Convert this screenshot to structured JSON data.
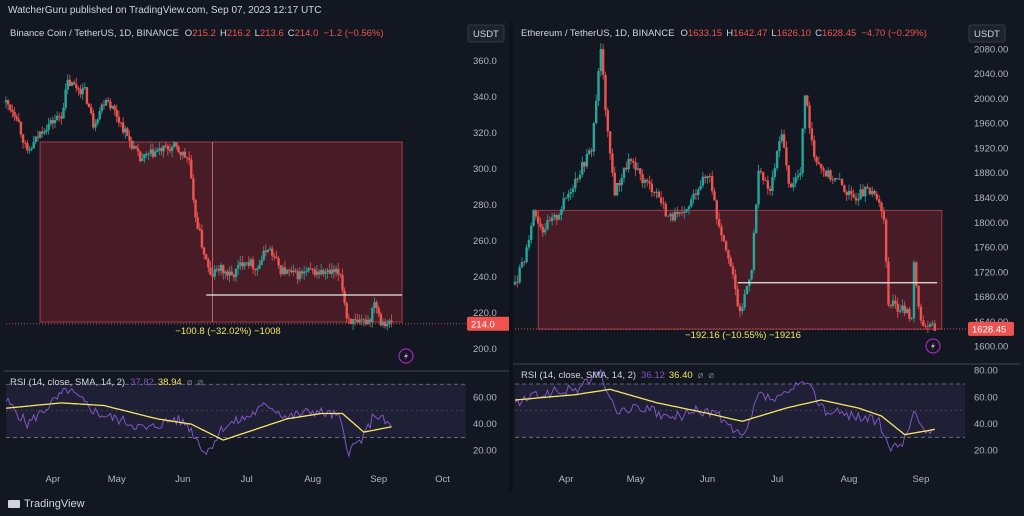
{
  "attribution": "WatcherGuru published on TradingView.com, Sep 07, 2023 12:17 UTC",
  "footer_logo": "TradingView",
  "colors": {
    "up": "#26a69a",
    "down": "#ef5350",
    "zone": "#5a1f2a",
    "rsi": "#7e57c2",
    "sma": "#f5e663",
    "bg": "#131722"
  },
  "chart_data": [
    {
      "type": "candlestick",
      "symbol": "Binance Coin / TetherUS, 1D, BINANCE",
      "ohlc_label": {
        "o": "O",
        "o_val": "215.2",
        "h": "H",
        "h_val": "216.2",
        "l": "L",
        "l_val": "213.6",
        "c": "C",
        "c_val": "214.0",
        "chg": "−1.2 (−0.56%)"
      },
      "currency": "USDT",
      "last_price": "214.0",
      "ylim": [
        190,
        375
      ],
      "y_ticks": [
        "360.0",
        "340.0",
        "320.0",
        "300.0",
        "280.0",
        "260.0",
        "240.0",
        "220.0",
        "200.0"
      ],
      "x_labels": [
        "Apr",
        "May",
        "Jun",
        "Jul",
        "Aug",
        "Sep",
        "Oct"
      ],
      "x_range": [
        "2023-03-10",
        "2023-10-12"
      ],
      "x_label_dates": [
        "2023-04-01",
        "2023-05-01",
        "2023-06-01",
        "2023-07-01",
        "2023-08-01",
        "2023-09-01",
        "2023-10-01"
      ],
      "anchors": [
        [
          "2023-03-10",
          337
        ],
        [
          "2023-03-15",
          330
        ],
        [
          "2023-03-20",
          308
        ],
        [
          "2023-03-27",
          322
        ],
        [
          "2023-04-05",
          330
        ],
        [
          "2023-04-08",
          348
        ],
        [
          "2023-04-16",
          343
        ],
        [
          "2023-04-20",
          325
        ],
        [
          "2023-04-26",
          340
        ],
        [
          "2023-05-01",
          330
        ],
        [
          "2023-05-06",
          318
        ],
        [
          "2023-05-12",
          305
        ],
        [
          "2023-05-20",
          310
        ],
        [
          "2023-05-28",
          312
        ],
        [
          "2023-06-04",
          305
        ],
        [
          "2023-06-06",
          280
        ],
        [
          "2023-06-10",
          258
        ],
        [
          "2023-06-14",
          240
        ],
        [
          "2023-06-18",
          245
        ],
        [
          "2023-06-24",
          240
        ],
        [
          "2023-06-30",
          250
        ],
        [
          "2023-07-06",
          245
        ],
        [
          "2023-07-11",
          257
        ],
        [
          "2023-07-17",
          244
        ],
        [
          "2023-07-24",
          241
        ],
        [
          "2023-07-31",
          243
        ],
        [
          "2023-08-07",
          242
        ],
        [
          "2023-08-14",
          242
        ],
        [
          "2023-08-17",
          218
        ],
        [
          "2023-08-22",
          213
        ],
        [
          "2023-08-28",
          217
        ],
        [
          "2023-08-30",
          228
        ],
        [
          "2023-09-02",
          216
        ],
        [
          "2023-09-07",
          214
        ]
      ],
      "zone": {
        "y_top": 315,
        "y_bottom": 215,
        "x_start": "2023-03-26",
        "x_end": "2023-09-12"
      },
      "level_line": {
        "y": 230,
        "x_start": "2023-06-12",
        "x_end": "2023-09-12"
      },
      "marker_date": "2023-06-15",
      "range_label": "−100.8 (−32.02%) −1008",
      "rsi": {
        "label": "RSI (14, close, SMA, 14, 2)",
        "v1": "37.82",
        "v2": "38.94",
        "y_ticks": [
          "60.00",
          "40.00",
          "20.00"
        ],
        "ylim": [
          10,
          80
        ],
        "bands": [
          70,
          30
        ],
        "anchors": [
          [
            "2023-03-10",
            58
          ],
          [
            "2023-03-20",
            40
          ],
          [
            "2023-04-08",
            66
          ],
          [
            "2023-04-22",
            48
          ],
          [
            "2023-05-05",
            42
          ],
          [
            "2023-05-15",
            36
          ],
          [
            "2023-05-28",
            44
          ],
          [
            "2023-06-03",
            40
          ],
          [
            "2023-06-12",
            18
          ],
          [
            "2023-06-20",
            38
          ],
          [
            "2023-07-01",
            45
          ],
          [
            "2023-07-11",
            55
          ],
          [
            "2023-07-20",
            45
          ],
          [
            "2023-08-01",
            50
          ],
          [
            "2023-08-13",
            46
          ],
          [
            "2023-08-18",
            20
          ],
          [
            "2023-08-25",
            30
          ],
          [
            "2023-08-30",
            48
          ],
          [
            "2023-09-07",
            38
          ]
        ],
        "sma_anchors": [
          [
            "2023-03-10",
            52
          ],
          [
            "2023-04-05",
            56
          ],
          [
            "2023-04-25",
            54
          ],
          [
            "2023-05-20",
            44
          ],
          [
            "2023-06-05",
            40
          ],
          [
            "2023-06-20",
            28
          ],
          [
            "2023-07-05",
            36
          ],
          [
            "2023-07-20",
            44
          ],
          [
            "2023-08-05",
            48
          ],
          [
            "2023-08-15",
            48
          ],
          [
            "2023-08-25",
            34
          ],
          [
            "2023-09-07",
            38
          ]
        ]
      }
    },
    {
      "type": "candlestick",
      "symbol": "Ethereum / TetherUS, 1D, BINANCE",
      "ohlc_label": {
        "o": "O",
        "o_val": "1633.15",
        "h": "H",
        "h_val": "1642.47",
        "l": "L",
        "l_val": "1626.10",
        "c": "C",
        "c_val": "1628.45",
        "chg": "−4.70 (−0.29%)"
      },
      "currency": "USDT",
      "last_price": "1628.45",
      "ylim": [
        1575,
        2105
      ],
      "y_ticks": [
        "2080.00",
        "2040.00",
        "2000.00",
        "1960.00",
        "1920.00",
        "1880.00",
        "1840.00",
        "1800.00",
        "1760.00",
        "1720.00",
        "1680.00",
        "1640.00",
        "1600.00"
      ],
      "x_labels": [
        "Apr",
        "May",
        "Jun",
        "Jul",
        "Aug",
        "Sep"
      ],
      "x_range": [
        "2023-03-10",
        "2023-09-20"
      ],
      "x_label_dates": [
        "2023-04-01",
        "2023-05-01",
        "2023-06-01",
        "2023-07-01",
        "2023-08-01",
        "2023-09-01"
      ],
      "anchors": [
        [
          "2023-03-10",
          1700
        ],
        [
          "2023-03-14",
          1740
        ],
        [
          "2023-03-18",
          1820
        ],
        [
          "2023-03-22",
          1790
        ],
        [
          "2023-03-28",
          1810
        ],
        [
          "2023-04-05",
          1870
        ],
        [
          "2023-04-12",
          1920
        ],
        [
          "2023-04-16",
          2080
        ],
        [
          "2023-04-19",
          1940
        ],
        [
          "2023-04-22",
          1850
        ],
        [
          "2023-04-28",
          1900
        ],
        [
          "2023-05-04",
          1870
        ],
        [
          "2023-05-10",
          1850
        ],
        [
          "2023-05-15",
          1810
        ],
        [
          "2023-05-22",
          1810
        ],
        [
          "2023-05-28",
          1860
        ],
        [
          "2023-06-02",
          1880
        ],
        [
          "2023-06-05",
          1810
        ],
        [
          "2023-06-10",
          1750
        ],
        [
          "2023-06-15",
          1650
        ],
        [
          "2023-06-20",
          1730
        ],
        [
          "2023-06-23",
          1880
        ],
        [
          "2023-06-28",
          1850
        ],
        [
          "2023-07-03",
          1950
        ],
        [
          "2023-07-06",
          1860
        ],
        [
          "2023-07-11",
          1880
        ],
        [
          "2023-07-13",
          2010
        ],
        [
          "2023-07-17",
          1910
        ],
        [
          "2023-07-22",
          1880
        ],
        [
          "2023-07-28",
          1865
        ],
        [
          "2023-08-02",
          1840
        ],
        [
          "2023-08-08",
          1850
        ],
        [
          "2023-08-14",
          1840
        ],
        [
          "2023-08-16",
          1800
        ],
        [
          "2023-08-18",
          1670
        ],
        [
          "2023-08-24",
          1660
        ],
        [
          "2023-08-28",
          1650
        ],
        [
          "2023-08-29",
          1730
        ],
        [
          "2023-09-01",
          1640
        ],
        [
          "2023-09-07",
          1628
        ]
      ],
      "zone": {
        "y_top": 1820,
        "y_bottom": 1628,
        "x_start": "2023-03-20",
        "x_end": "2023-09-10"
      },
      "level_line": {
        "y": 1703,
        "x_start": "2023-06-14",
        "x_end": "2023-09-08"
      },
      "range_label": "−192.16 (−10.55%) −19216",
      "rsi": {
        "label": "RSI (14, close, SMA, 14, 2)",
        "v1": "36.12",
        "v2": "36.40",
        "y_ticks": [
          "80.00",
          "60.00",
          "40.00",
          "20.00"
        ],
        "ylim": [
          10,
          85
        ],
        "bands": [
          70,
          30
        ],
        "anchors": [
          [
            "2023-03-10",
            55
          ],
          [
            "2023-03-20",
            62
          ],
          [
            "2023-04-05",
            66
          ],
          [
            "2023-04-16",
            78
          ],
          [
            "2023-04-22",
            50
          ],
          [
            "2023-05-05",
            52
          ],
          [
            "2023-05-15",
            44
          ],
          [
            "2023-05-28",
            50
          ],
          [
            "2023-06-05",
            48
          ],
          [
            "2023-06-12",
            34
          ],
          [
            "2023-06-17",
            30
          ],
          [
            "2023-06-23",
            62
          ],
          [
            "2023-07-01",
            58
          ],
          [
            "2023-07-13",
            72
          ],
          [
            "2023-07-22",
            50
          ],
          [
            "2023-08-05",
            46
          ],
          [
            "2023-08-14",
            42
          ],
          [
            "2023-08-18",
            20
          ],
          [
            "2023-08-25",
            28
          ],
          [
            "2023-08-29",
            50
          ],
          [
            "2023-09-02",
            34
          ],
          [
            "2023-09-07",
            36
          ]
        ],
        "sma_anchors": [
          [
            "2023-03-10",
            58
          ],
          [
            "2023-04-05",
            62
          ],
          [
            "2023-04-20",
            66
          ],
          [
            "2023-05-10",
            56
          ],
          [
            "2023-06-01",
            48
          ],
          [
            "2023-06-16",
            42
          ],
          [
            "2023-07-05",
            52
          ],
          [
            "2023-07-20",
            58
          ],
          [
            "2023-08-05",
            52
          ],
          [
            "2023-08-15",
            46
          ],
          [
            "2023-08-25",
            32
          ],
          [
            "2023-09-07",
            36
          ]
        ]
      }
    }
  ]
}
